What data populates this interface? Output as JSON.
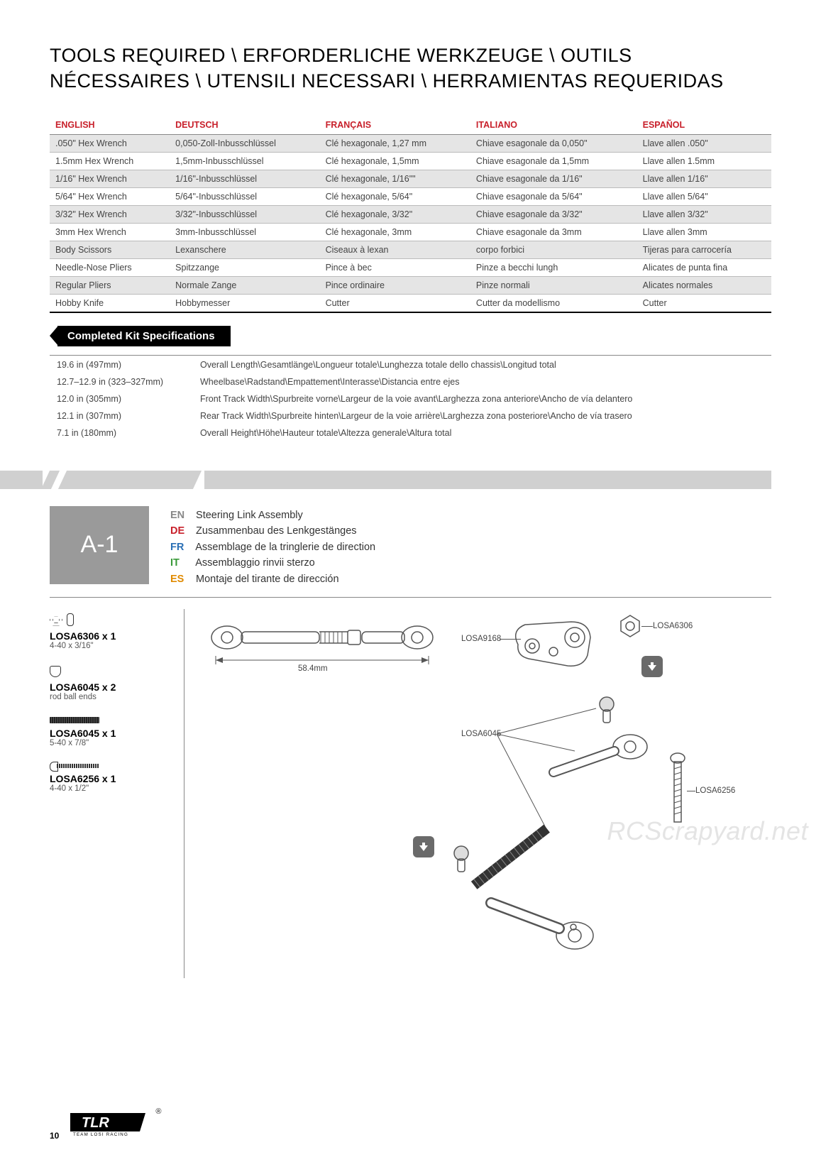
{
  "title": "TOOLS REQUIRED \\ ERFORDERLICHE WERKZEUGE \\ OUTILS NÉCESSAIRES \\ UTENSILI NECESSARI \\ HERRAMIENTAS REQUERIDAS",
  "tools_table": {
    "header_color": "#c8202b",
    "row_alt_bg": "#e5e5e5",
    "columns": [
      "ENGLISH",
      "DEUTSCH",
      "FRANÇAIS",
      "ITALIANO",
      "ESPAÑOL"
    ],
    "rows": [
      [
        ".050\" Hex Wrench",
        "0,050-Zoll-Inbusschlüssel",
        "Clé hexagonale, 1,27 mm",
        "Chiave esagonale da 0,050\"",
        "Llave allen .050\""
      ],
      [
        "1.5mm Hex Wrench",
        "1,5mm-Inbusschlüssel",
        "Clé hexagonale, 1,5mm",
        "Chiave esagonale da 1,5mm",
        "Llave allen 1.5mm"
      ],
      [
        "1/16\" Hex Wrench",
        "1/16\"-Inbusschlüssel",
        "Clé hexagonale, 1/16\"\"",
        "Chiave esagonale da 1/16\"",
        "Llave allen 1/16\""
      ],
      [
        "5/64\" Hex Wrench",
        "5/64\"-Inbusschlüssel",
        "Clé hexagonale, 5/64\"",
        "Chiave esagonale da 5/64\"",
        "Llave allen 5/64\""
      ],
      [
        "3/32\" Hex Wrench",
        "3/32\"-Inbusschlüssel",
        "Clé hexagonale, 3/32\"",
        "Chiave esagonale da 3/32\"",
        "Llave allen 3/32\""
      ],
      [
        "3mm Hex Wrench",
        "3mm-Inbusschlüssel",
        "Clé hexagonale, 3mm",
        "Chiave esagonale da 3mm",
        "Llave allen 3mm"
      ],
      [
        "Body Scissors",
        "Lexanschere",
        "Ciseaux à lexan",
        "corpo forbici",
        "Tijeras para carrocería"
      ],
      [
        "Needle-Nose Pliers",
        "Spitzzange",
        "Pince à bec",
        "Pinze a becchi lungh",
        "Alicates de punta fina"
      ],
      [
        "Regular Pliers",
        "Normale Zange",
        "Pince ordinaire",
        "Pinze normali",
        "Alicates normales"
      ],
      [
        "Hobby Knife",
        "Hobbymesser",
        "Cutter",
        "Cutter da modellismo",
        "Cutter"
      ]
    ]
  },
  "specs_header": "Completed Kit Specifications",
  "specs": {
    "rows": [
      [
        "19.6 in (497mm)",
        "Overall Length\\Gesamtlänge\\Longueur totale\\Lunghezza totale dello chassis\\Longitud total"
      ],
      [
        "12.7–12.9 in (323–327mm)",
        "Wheelbase\\Radstand\\Empattement\\Interasse\\Distancia entre ejes"
      ],
      [
        "12.0 in (305mm)",
        "Front Track Width\\Spurbreite vorne\\Largeur de la voie avant\\Larghezza zona anteriore\\Ancho de vía delantero"
      ],
      [
        "12.1 in (307mm)",
        "Rear Track Width\\Spurbreite hinten\\Largeur de la voie arrière\\Larghezza zona posteriore\\Ancho de vía trasero"
      ],
      [
        "7.1 in (180mm)",
        "Overall Height\\Höhe\\Hauteur totale\\Altezza generale\\Altura total"
      ]
    ]
  },
  "step": {
    "badge": "A-1",
    "badge_bg": "#9a9a9a",
    "langs": [
      {
        "code": "EN",
        "cls": "en",
        "text": "Steering Link Assembly"
      },
      {
        "code": "DE",
        "cls": "de",
        "text": "Zusammenbau des Lenkgestänges"
      },
      {
        "code": "FR",
        "cls": "fr",
        "text": "Assemblage de la tringlerie de direction"
      },
      {
        "code": "IT",
        "cls": "it",
        "text": "Assemblaggio rinvii sterzo"
      },
      {
        "code": "ES",
        "cls": "es",
        "text": "Montaje del tirante de dirección"
      }
    ]
  },
  "parts": [
    {
      "sku": "LOSA6306 x 1",
      "desc": "4-40 x 3/16\"",
      "icons": [
        "hex",
        "slot"
      ]
    },
    {
      "sku": "LOSA6045 x 2",
      "desc": "rod ball ends",
      "icons": [
        "ball"
      ]
    },
    {
      "sku": "LOSA6045 x 1",
      "desc": "5-40 x 7/8\"",
      "icons": [
        "setscrew"
      ]
    },
    {
      "sku": "LOSA6256 x 1",
      "desc": "4-40 x 1/2\"",
      "icons": [
        "bhscrew"
      ]
    }
  ],
  "callouts": {
    "dim": "58.4mm",
    "c1": "LOSA9168",
    "c2": "LOSA6306",
    "c3": "LOSA6045",
    "c4": "LOSA6256"
  },
  "watermark": "RCScrapyard.net",
  "footer": {
    "page": "10",
    "brand_sub": "TEAM LOSI RACING"
  },
  "colors": {
    "accent_red": "#c8202b",
    "gray_badge": "#9a9a9a",
    "gray_strip": "#d0d0d0",
    "text": "#222222",
    "muted": "#444444"
  }
}
